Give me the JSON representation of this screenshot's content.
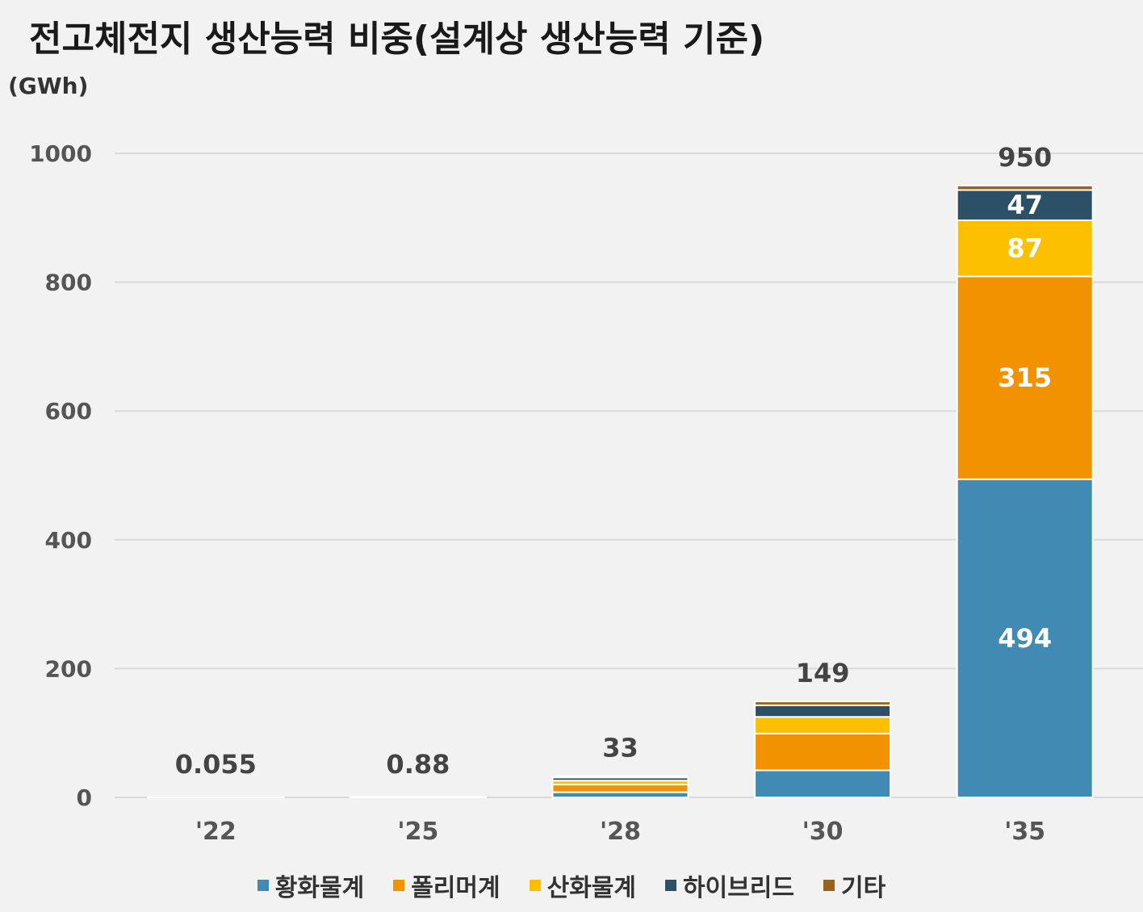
{
  "title": "전고체전지 생산능력 비중(설계상 생산능력 기준)",
  "unit_label": "(GWh)",
  "chart_data": {
    "type": "bar",
    "stacked": true,
    "categories": [
      "'22",
      "'25",
      "'28",
      "'30",
      "'35"
    ],
    "ylim": [
      0,
      1000
    ],
    "yticks": [
      0,
      200,
      400,
      600,
      800,
      1000
    ],
    "grid": true,
    "legend_position": "bottom",
    "series": [
      {
        "name": "황화물계",
        "color": "#418ab3",
        "values": [
          0.03,
          0.5,
          8,
          42,
          494
        ]
      },
      {
        "name": "폴리머계",
        "color": "#f39200",
        "values": [
          0.01,
          0.2,
          12,
          57,
          315
        ]
      },
      {
        "name": "산화물계",
        "color": "#fcc000",
        "values": [
          0.01,
          0.1,
          6,
          26,
          87
        ]
      },
      {
        "name": "하이브리드",
        "color": "#2c5167",
        "values": [
          0.003,
          0.05,
          5,
          18,
          47
        ]
      },
      {
        "name": "기타",
        "color": "#99621a",
        "values": [
          0.002,
          0.03,
          2,
          6,
          7
        ]
      }
    ],
    "segment_labels": [
      {
        "category": 4,
        "series": 0,
        "text": "494"
      },
      {
        "category": 4,
        "series": 1,
        "text": "315"
      },
      {
        "category": 4,
        "series": 2,
        "text": "87"
      },
      {
        "category": 4,
        "series": 3,
        "text": "47"
      }
    ],
    "total_labels": [
      "0.055",
      "0.88",
      "33",
      "149",
      "950"
    ]
  }
}
